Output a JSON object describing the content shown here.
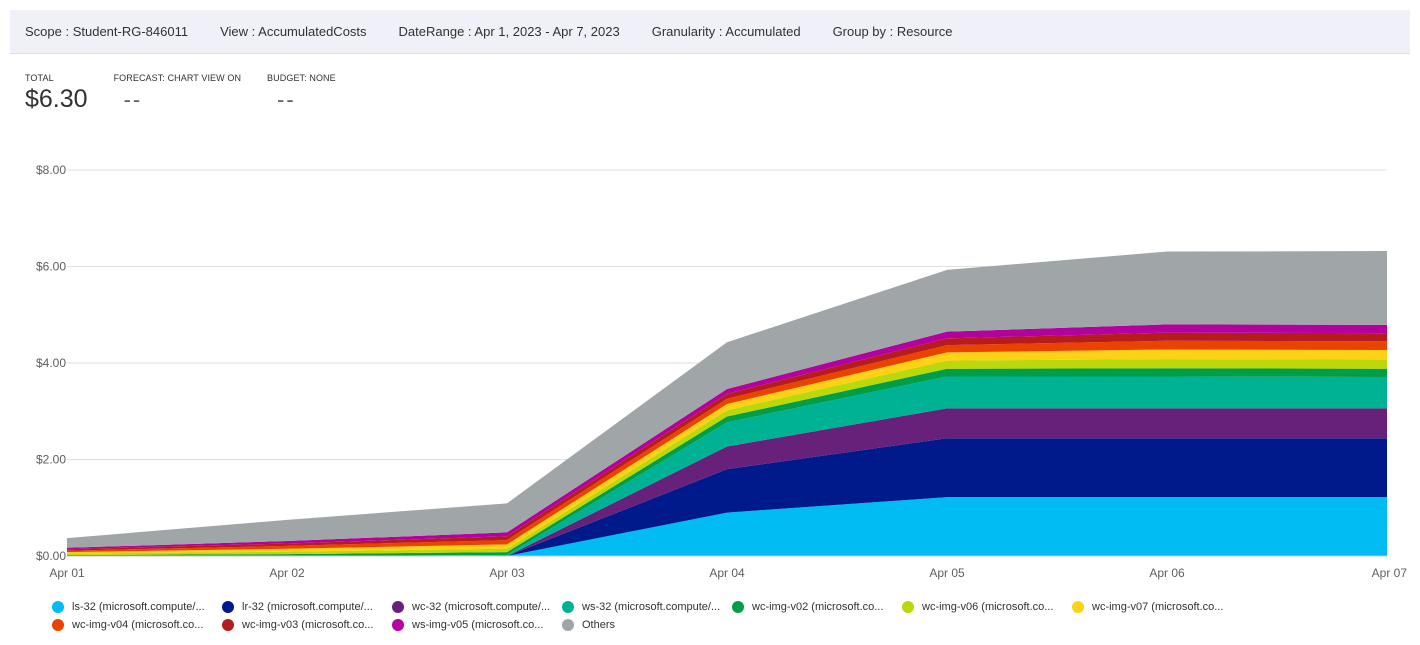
{
  "filters": {
    "scope": "Scope : Student-RG-846011",
    "view": "View : AccumulatedCosts",
    "daterange": "DateRange : Apr 1, 2023 - Apr 7, 2023",
    "granularity": "Granularity : Accumulated",
    "groupby": "Group by : Resource"
  },
  "kpis": {
    "total_label": "TOTAL",
    "total_value": "$6.30",
    "forecast_label": "FORECAST: CHART VIEW ON",
    "forecast_value": "--",
    "budget_label": "BUDGET: NONE",
    "budget_value": "--"
  },
  "chart_data": {
    "type": "area",
    "stacked": true,
    "categories": [
      "Apr 01",
      "Apr 02",
      "Apr 03",
      "Apr 04",
      "Apr 05",
      "Apr 06",
      "Apr 07"
    ],
    "ylim": [
      0,
      8
    ],
    "yticks": [
      0,
      2,
      4,
      6,
      8
    ],
    "ytick_labels": [
      "$0.00",
      "$2.00",
      "$4.00",
      "$6.00",
      "$8.00"
    ],
    "grid": true,
    "legend_position": "bottom",
    "series": [
      {
        "name": "ls-32 (microsoft.compute/...",
        "color": "#00bcf2",
        "values": [
          0,
          0,
          0,
          0.9,
          1.22,
          1.22,
          1.22
        ]
      },
      {
        "name": "lr-32 (microsoft.compute/...",
        "color": "#001a8c",
        "values": [
          0,
          0,
          0,
          0.9,
          1.22,
          1.22,
          1.22
        ]
      },
      {
        "name": "wc-32 (microsoft.compute/...",
        "color": "#68217a",
        "values": [
          0,
          0,
          0,
          0.47,
          0.62,
          0.62,
          0.62
        ]
      },
      {
        "name": "ws-32 (microsoft.compute/...",
        "color": "#00b294",
        "values": [
          0,
          0,
          0.02,
          0.5,
          0.66,
          0.66,
          0.65
        ]
      },
      {
        "name": "wc-img-v02 (microsoft.co...",
        "color": "#009e49",
        "values": [
          0.02,
          0.04,
          0.06,
          0.12,
          0.16,
          0.17,
          0.17
        ]
      },
      {
        "name": "wc-img-v06 (microsoft.co...",
        "color": "#bad80a",
        "values": [
          0.03,
          0.05,
          0.07,
          0.13,
          0.17,
          0.19,
          0.19
        ]
      },
      {
        "name": "wc-img-v07 (microsoft.co...",
        "color": "#fcd116",
        "values": [
          0.03,
          0.06,
          0.09,
          0.13,
          0.17,
          0.2,
          0.2
        ]
      },
      {
        "name": "wc-img-v04 (microsoft.co...",
        "color": "#ea4300",
        "values": [
          0.03,
          0.06,
          0.09,
          0.11,
          0.15,
          0.18,
          0.18
        ]
      },
      {
        "name": "wc-img-v03 (microsoft.co...",
        "color": "#b71c1c",
        "values": [
          0.03,
          0.05,
          0.08,
          0.1,
          0.14,
          0.17,
          0.17
        ]
      },
      {
        "name": "ws-img-v05 (microsoft.co...",
        "color": "#b4009e",
        "values": [
          0.03,
          0.05,
          0.08,
          0.1,
          0.14,
          0.17,
          0.17
        ]
      },
      {
        "name": "Others",
        "color": "#a0a5a8",
        "values": [
          0.2,
          0.44,
          0.6,
          0.97,
          1.28,
          1.51,
          1.53
        ]
      }
    ]
  }
}
